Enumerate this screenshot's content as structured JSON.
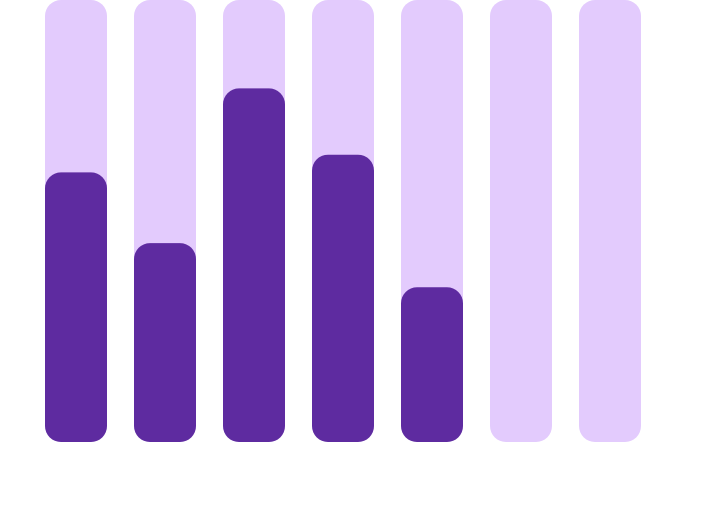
{
  "chart_data": {
    "type": "bar",
    "categories": [
      "",
      "",
      "",
      "",
      "",
      "",
      ""
    ],
    "values": [
      0.61,
      0.45,
      0.8,
      0.65,
      0.35,
      0,
      0
    ],
    "ylim": [
      0,
      1
    ],
    "grid": false,
    "legend": "none",
    "colors": {
      "track": "#e3cbfd",
      "fill": "#5e2ba0",
      "background": "#ffffff"
    }
  }
}
